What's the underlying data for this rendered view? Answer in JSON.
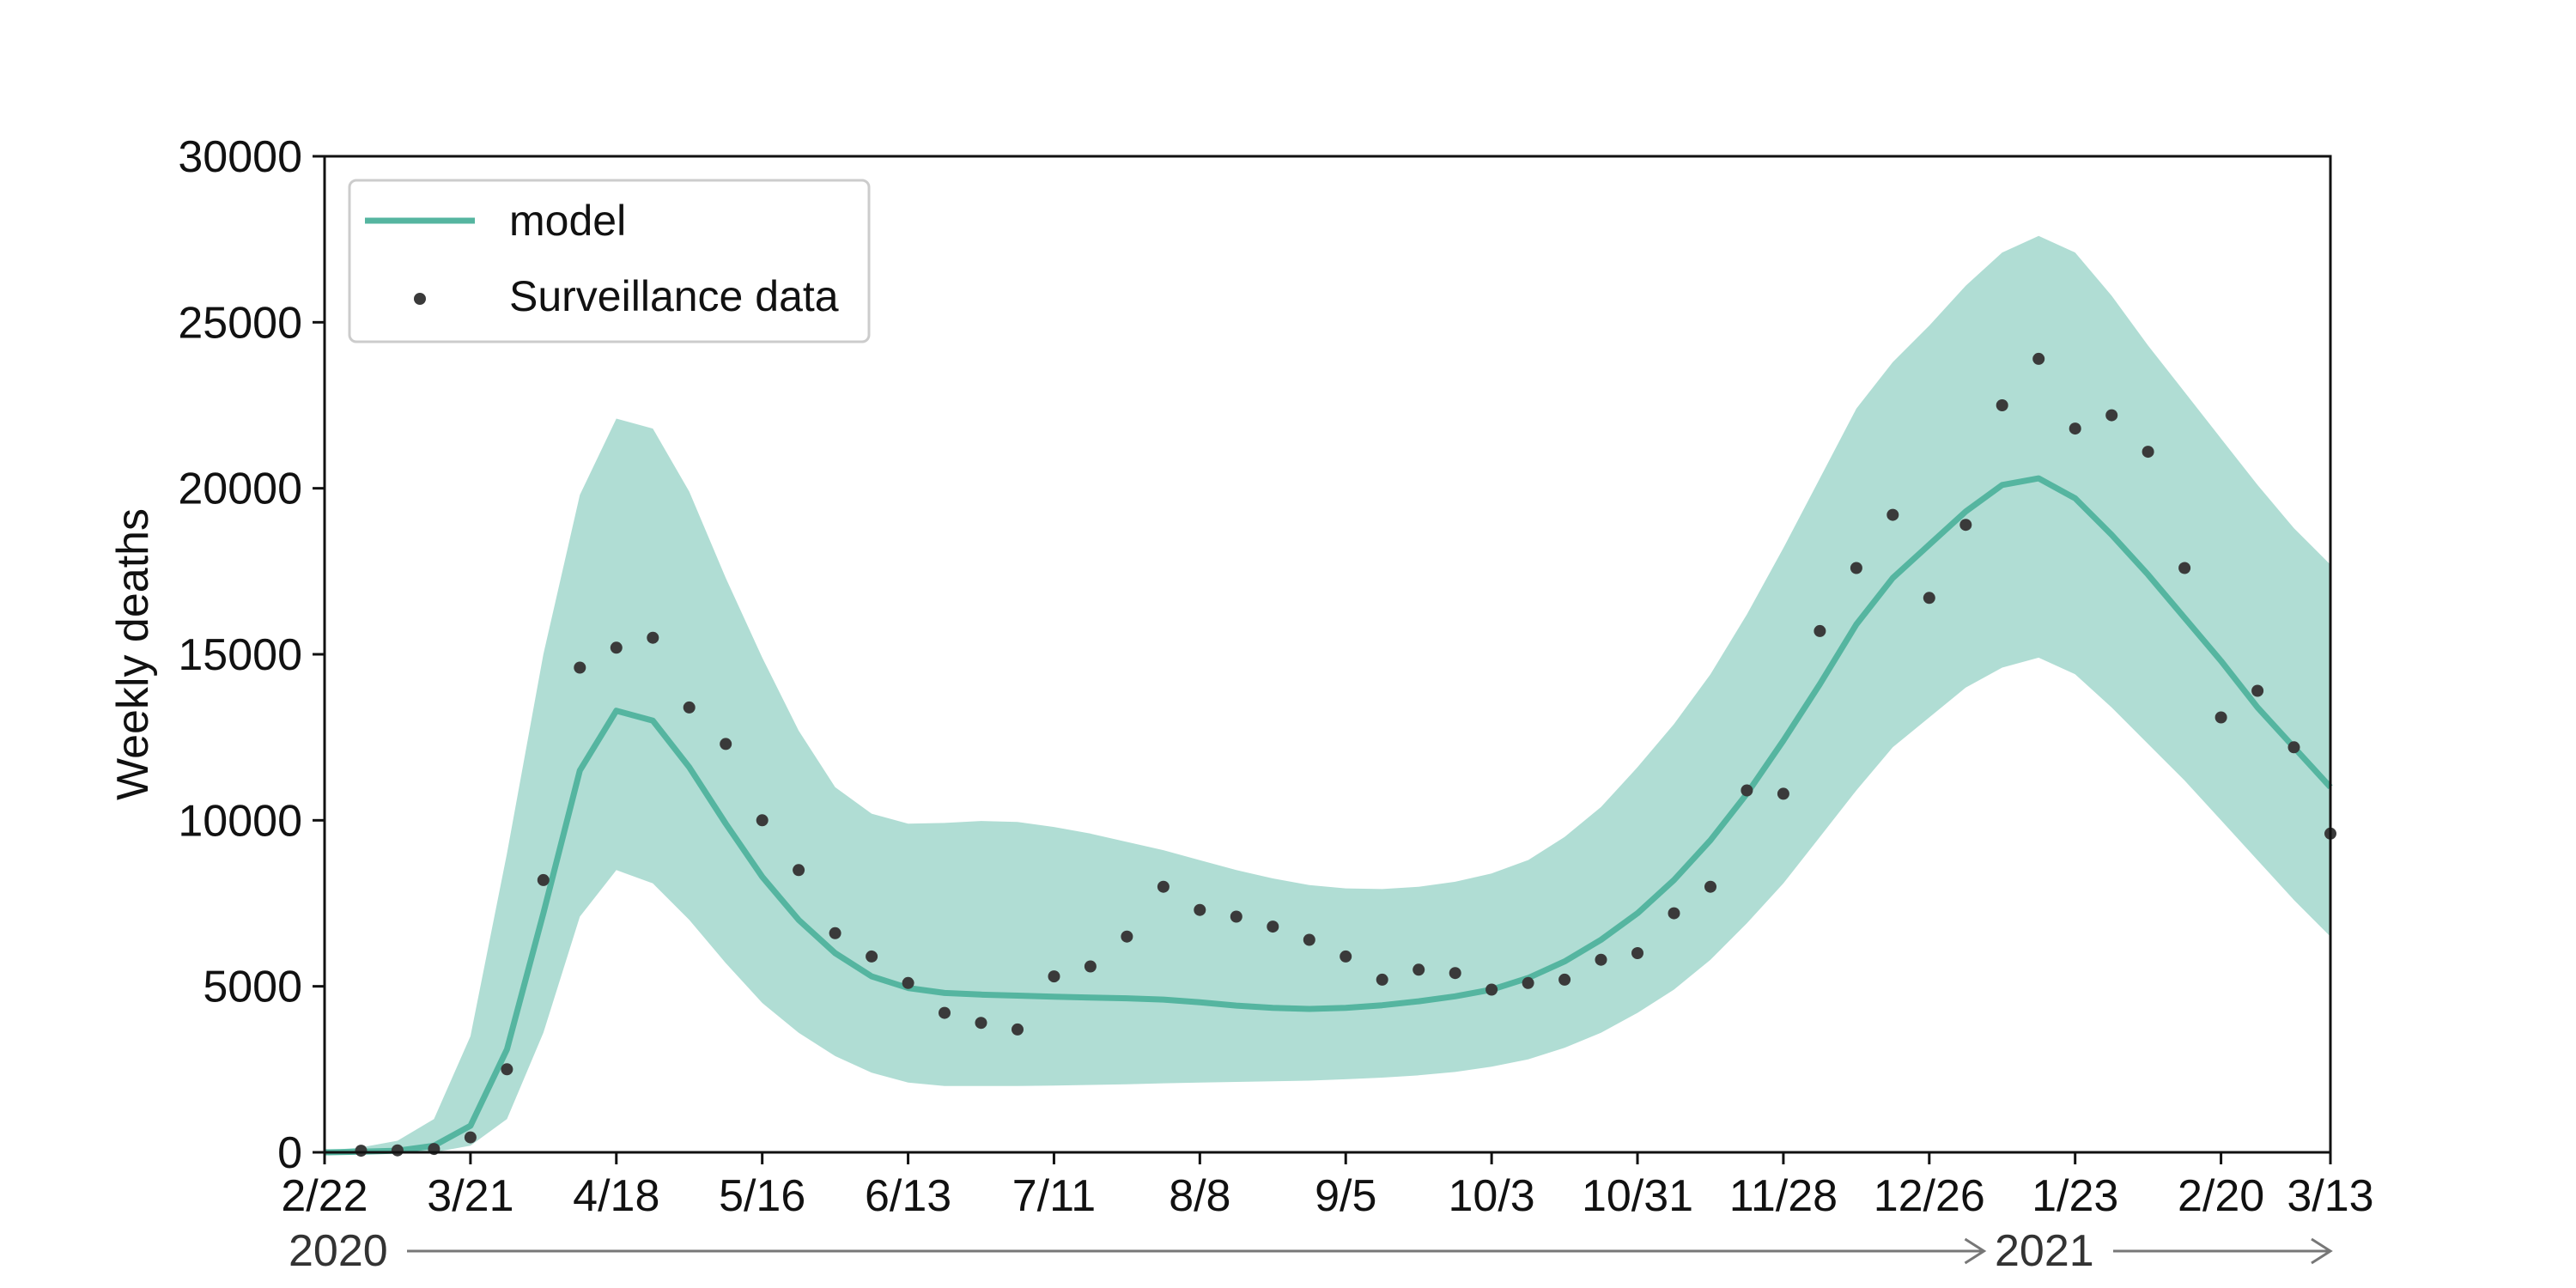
{
  "colors": {
    "model": "#55b5a0",
    "band": "#b0ddd4",
    "points": "#3a3a3a",
    "axis": "#111111",
    "arrow": "#777777"
  },
  "chart_data": {
    "type": "line",
    "ylabel": "Weekly deaths",
    "xlabel": "",
    "ylim": [
      0,
      30000
    ],
    "y_ticks": [
      0,
      5000,
      10000,
      15000,
      20000,
      25000,
      30000
    ],
    "x_range_weeks": [
      0,
      55
    ],
    "x_ticks": [
      {
        "week": 0,
        "label": "2/22"
      },
      {
        "week": 4,
        "label": "3/21"
      },
      {
        "week": 8,
        "label": "4/18"
      },
      {
        "week": 12,
        "label": "5/16"
      },
      {
        "week": 16,
        "label": "6/13"
      },
      {
        "week": 20,
        "label": "7/11"
      },
      {
        "week": 24,
        "label": "8/8"
      },
      {
        "week": 28,
        "label": "9/5"
      },
      {
        "week": 32,
        "label": "10/3"
      },
      {
        "week": 36,
        "label": "10/31"
      },
      {
        "week": 40,
        "label": "11/28"
      },
      {
        "week": 44,
        "label": "12/26"
      },
      {
        "week": 48,
        "label": "1/23"
      },
      {
        "week": 52,
        "label": "2/20"
      },
      {
        "week": 55,
        "label": "3/13"
      }
    ],
    "year_labels": [
      {
        "label": "2020",
        "arrow_to_week": 45.5
      },
      {
        "label": "2021",
        "arrow_to_week": 55
      }
    ],
    "legend": {
      "position": "top-left",
      "entries": [
        "model",
        "Surveillance data"
      ]
    },
    "series": [
      {
        "name": "model",
        "kind": "line",
        "weeks": [
          0,
          1,
          2,
          3,
          4,
          5,
          6,
          7,
          8,
          9,
          10,
          11,
          12,
          13,
          14,
          15,
          16,
          17,
          18,
          19,
          20,
          21,
          22,
          23,
          24,
          25,
          26,
          27,
          28,
          29,
          30,
          31,
          32,
          33,
          34,
          35,
          36,
          37,
          38,
          39,
          40,
          41,
          42,
          43,
          44,
          45,
          46,
          47,
          48,
          49,
          50,
          51,
          52,
          53,
          54,
          55
        ],
        "values": [
          0,
          20,
          50,
          200,
          800,
          3100,
          7200,
          11500,
          13300,
          13000,
          11600,
          9900,
          8300,
          7000,
          6000,
          5300,
          4950,
          4800,
          4750,
          4720,
          4690,
          4660,
          4640,
          4600,
          4520,
          4420,
          4350,
          4320,
          4350,
          4430,
          4550,
          4700,
          4900,
          5250,
          5750,
          6400,
          7200,
          8200,
          9400,
          10800,
          12400,
          14100,
          15900,
          17300,
          18300,
          19300,
          20100,
          20300,
          19700,
          18600,
          17400,
          16100,
          14800,
          13400,
          12200,
          11000
        ]
      },
      {
        "name": "Surveillance data",
        "kind": "scatter",
        "weeks": [
          1,
          2,
          3,
          4,
          5,
          6,
          7,
          8,
          9,
          10,
          11,
          12,
          13,
          14,
          15,
          16,
          17,
          18,
          19,
          20,
          21,
          22,
          23,
          24,
          25,
          26,
          27,
          28,
          29,
          30,
          31,
          32,
          33,
          34,
          35,
          36,
          37,
          38,
          39,
          40,
          41,
          42,
          43,
          44,
          45,
          46,
          47,
          48,
          49,
          50,
          51,
          52,
          53,
          54,
          55
        ],
        "values": [
          50,
          60,
          100,
          450,
          2500,
          8200,
          14600,
          15200,
          15500,
          13400,
          12300,
          10000,
          8500,
          6600,
          5900,
          5100,
          4200,
          3900,
          3700,
          5300,
          5600,
          6500,
          8000,
          7300,
          7100,
          6800,
          6400,
          5900,
          5200,
          5500,
          5400,
          4900,
          5100,
          5200,
          5800,
          6000,
          7200,
          8000,
          10900,
          10800,
          15700,
          17600,
          19200,
          16700,
          18900,
          22500,
          23900,
          21800,
          22200,
          21100,
          17600,
          13100,
          13900,
          12200,
          9600
        ]
      },
      {
        "name": "band_upper",
        "kind": "band",
        "weeks": [
          0,
          1,
          2,
          3,
          4,
          5,
          6,
          7,
          8,
          9,
          10,
          11,
          12,
          13,
          14,
          15,
          16,
          17,
          18,
          19,
          20,
          21,
          22,
          23,
          24,
          25,
          26,
          27,
          28,
          29,
          30,
          31,
          32,
          33,
          34,
          35,
          36,
          37,
          38,
          39,
          40,
          41,
          42,
          43,
          44,
          45,
          46,
          47,
          48,
          49,
          50,
          51,
          52,
          53,
          54,
          55
        ],
        "values": [
          50,
          150,
          350,
          1000,
          3500,
          9000,
          15000,
          19800,
          22100,
          21800,
          19900,
          17300,
          14900,
          12700,
          11000,
          10200,
          9900,
          9920,
          9980,
          9950,
          9800,
          9600,
          9350,
          9100,
          8800,
          8500,
          8250,
          8050,
          7950,
          7930,
          8000,
          8150,
          8400,
          8800,
          9500,
          10400,
          11600,
          12900,
          14400,
          16200,
          18200,
          20300,
          22400,
          23800,
          24900,
          26100,
          27100,
          27600,
          27100,
          25800,
          24300,
          22900,
          21500,
          20100,
          18800,
          17700
        ]
      },
      {
        "name": "band_lower",
        "kind": "band",
        "weeks": [
          0,
          1,
          2,
          3,
          4,
          5,
          6,
          7,
          8,
          9,
          10,
          11,
          12,
          13,
          14,
          15,
          16,
          17,
          18,
          19,
          20,
          21,
          22,
          23,
          24,
          25,
          26,
          27,
          28,
          29,
          30,
          31,
          32,
          33,
          34,
          35,
          36,
          37,
          38,
          39,
          40,
          41,
          42,
          43,
          44,
          45,
          46,
          47,
          48,
          49,
          50,
          51,
          52,
          53,
          54,
          55
        ],
        "values": [
          0,
          0,
          0,
          0,
          200,
          1000,
          3600,
          7100,
          8500,
          8100,
          7000,
          5700,
          4500,
          3600,
          2900,
          2400,
          2100,
          2000,
          2000,
          2000,
          2010,
          2030,
          2050,
          2080,
          2100,
          2120,
          2140,
          2160,
          2200,
          2250,
          2320,
          2420,
          2580,
          2800,
          3150,
          3600,
          4200,
          4900,
          5800,
          6900,
          8100,
          9500,
          10900,
          12200,
          13100,
          14000,
          14600,
          14900,
          14400,
          13400,
          12300,
          11200,
          10000,
          8800,
          7600,
          6500
        ]
      }
    ]
  }
}
